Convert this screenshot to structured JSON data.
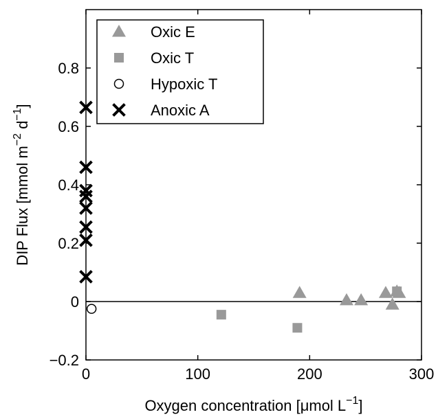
{
  "chart_data": {
    "type": "scatter",
    "xlabel_main": "Oxygen concentration [",
    "xlabel_unit_base": "μmol L",
    "xlabel_unit_sup": "−1",
    "xlabel_tail": "]",
    "ylabel_main": "DIP Flux [mmol m",
    "ylabel_sup1": "−2",
    "ylabel_mid": " d",
    "ylabel_sup2": "−1",
    "ylabel_tail": "]",
    "xlim": [
      0,
      300
    ],
    "ylim": [
      -0.2,
      1.0
    ],
    "x_ticks": [
      0,
      100,
      200,
      300
    ],
    "x_tick_labels": [
      "0",
      "100",
      "200",
      "300"
    ],
    "y_ticks": [
      -0.2,
      0,
      0.2,
      0.4,
      0.6,
      0.8
    ],
    "y_tick_labels": [
      "−0.2",
      "0",
      "0.2",
      "0.4",
      "0.6",
      "0.8"
    ],
    "reference_line_y": 0,
    "grid": false,
    "legend_position": "top-left",
    "series": [
      {
        "name": "Oxic E",
        "marker": "triangle",
        "color": "#999999",
        "points": [
          [
            191,
            0.03
          ],
          [
            233,
            0.005
          ],
          [
            246,
            0.005
          ],
          [
            268,
            0.03
          ],
          [
            274,
            -0.01
          ],
          [
            278,
            0.035
          ],
          [
            280,
            0.03
          ]
        ]
      },
      {
        "name": "Oxic T",
        "marker": "square",
        "color": "#999999",
        "points": [
          [
            121,
            -0.045
          ],
          [
            189,
            -0.09
          ],
          [
            278,
            0.035
          ]
        ]
      },
      {
        "name": "Hypoxic T",
        "marker": "circle",
        "color": "#000000",
        "points": [
          [
            5,
            -0.025
          ]
        ]
      },
      {
        "name": "Anoxic A",
        "marker": "x",
        "color": "#000000",
        "points": [
          [
            0,
            0.665
          ],
          [
            0,
            0.46
          ],
          [
            0,
            0.38
          ],
          [
            0,
            0.36
          ],
          [
            0,
            0.32
          ],
          [
            0,
            0.255
          ],
          [
            0,
            0.21
          ],
          [
            0,
            0.085
          ]
        ]
      }
    ]
  }
}
